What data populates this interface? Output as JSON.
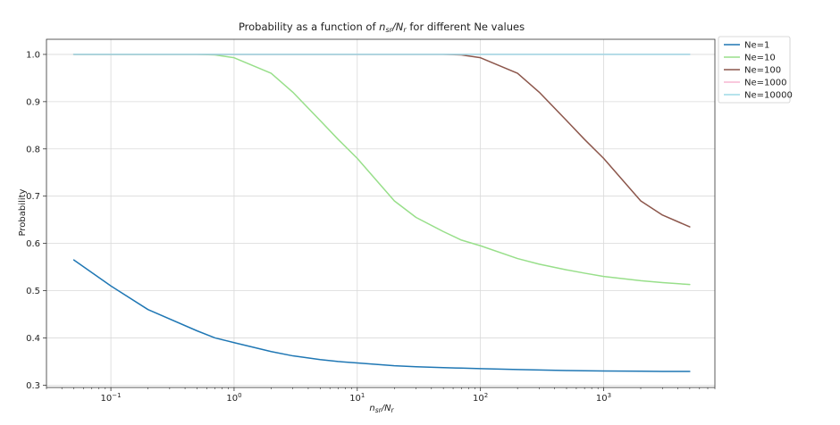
{
  "chart_data": {
    "type": "line",
    "title_prefix": "Probability as a function of ",
    "title_num": "n",
    "title_num_sub": "sr",
    "title_slash": "/",
    "title_den": "N",
    "title_den_sub": "r",
    "title_suffix": " for different Ne values",
    "xlabel_num": "n",
    "xlabel_num_sub": "sr",
    "xlabel_slash": "/",
    "xlabel_den": "N",
    "xlabel_den_sub": "r",
    "ylabel": "Probability",
    "x_scale": "log",
    "xlim": [
      0.03,
      8000
    ],
    "ylim": [
      0.295,
      1.032
    ],
    "x_ticks": [
      {
        "value": 0.1,
        "base": "10",
        "exp": "−1"
      },
      {
        "value": 1,
        "base": "10",
        "exp": "0"
      },
      {
        "value": 10,
        "base": "10",
        "exp": "1"
      },
      {
        "value": 100,
        "base": "10",
        "exp": "2"
      },
      {
        "value": 1000,
        "base": "10",
        "exp": "3"
      }
    ],
    "y_ticks": [
      {
        "value": 0.3,
        "label": "0.3"
      },
      {
        "value": 0.4,
        "label": "0.4"
      },
      {
        "value": 0.5,
        "label": "0.5"
      },
      {
        "value": 0.6,
        "label": "0.6"
      },
      {
        "value": 0.7,
        "label": "0.7"
      },
      {
        "value": 0.8,
        "label": "0.8"
      },
      {
        "value": 0.9,
        "label": "0.9"
      },
      {
        "value": 1.0,
        "label": "1.0"
      }
    ],
    "grid": true,
    "legend_position": "outside upper-right",
    "x": [
      0.05,
      0.1,
      0.2,
      0.5,
      0.7,
      1,
      2,
      3,
      5,
      7,
      10,
      20,
      30,
      50,
      70,
      100,
      200,
      300,
      500,
      700,
      1000,
      2000,
      3000,
      5000
    ],
    "series": [
      {
        "name": "Ne=1",
        "color": "#1f77b4",
        "values": [
          0.565,
          0.51,
          0.46,
          0.415,
          0.4,
          0.39,
          0.371,
          0.362,
          0.354,
          0.35,
          0.347,
          0.341,
          0.339,
          0.337,
          0.336,
          0.335,
          0.333,
          0.332,
          0.331,
          0.3305,
          0.33,
          0.3295,
          0.329,
          0.329
        ]
      },
      {
        "name": "Ne=10",
        "color": "#98df8a",
        "values": [
          1.0,
          1.0,
          1.0,
          1.0,
          0.999,
          0.993,
          0.96,
          0.92,
          0.86,
          0.82,
          0.78,
          0.69,
          0.655,
          0.625,
          0.607,
          0.595,
          0.568,
          0.556,
          0.544,
          0.537,
          0.53,
          0.521,
          0.517,
          0.513
        ]
      },
      {
        "name": "Ne=100",
        "color": "#8c564b",
        "values": [
          1.0,
          1.0,
          1.0,
          1.0,
          1.0,
          1.0,
          1.0,
          1.0,
          1.0,
          1.0,
          1.0,
          1.0,
          1.0,
          1.0,
          0.999,
          0.993,
          0.96,
          0.92,
          0.86,
          0.82,
          0.78,
          0.69,
          0.66,
          0.635
        ]
      },
      {
        "name": "Ne=1000",
        "color": "#f7b6d2",
        "values": [
          1.0,
          1.0,
          1.0,
          1.0,
          1.0,
          1.0,
          1.0,
          1.0,
          1.0,
          1.0,
          1.0,
          1.0,
          1.0,
          1.0,
          1.0,
          1.0,
          1.0,
          1.0,
          1.0,
          1.0,
          1.0,
          1.0,
          1.0,
          1.0
        ]
      },
      {
        "name": "Ne=10000",
        "color": "#9edae5",
        "values": [
          1.0,
          1.0,
          1.0,
          1.0,
          1.0,
          1.0,
          1.0,
          1.0,
          1.0,
          1.0,
          1.0,
          1.0,
          1.0,
          1.0,
          1.0,
          1.0,
          1.0,
          1.0,
          1.0,
          1.0,
          1.0,
          1.0,
          1.0,
          1.0
        ]
      }
    ]
  }
}
